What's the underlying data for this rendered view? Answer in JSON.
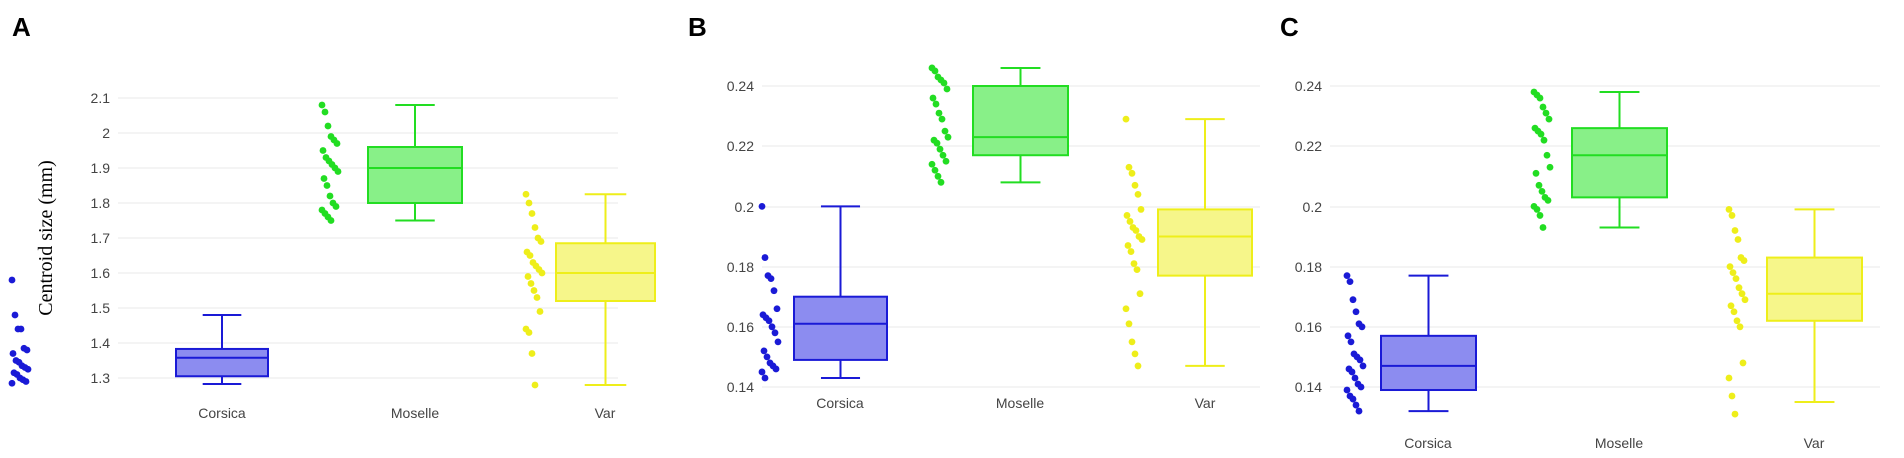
{
  "chart_data": [
    {
      "type": "box",
      "panel_label": "A",
      "ylabel": "Centroid size (mm)",
      "categories": [
        "Corsica",
        "Moselle",
        "Var"
      ],
      "yticks": [
        "1.3",
        "1.4",
        "1.5",
        "1.6",
        "1.7",
        "1.8",
        "1.9",
        "2",
        "2.1"
      ],
      "ylim": [
        1.27,
        2.12
      ],
      "grid": true,
      "boxes": [
        {
          "name": "Corsica",
          "color": "#1a1ad6",
          "fill": "#8c8cf0",
          "min": 1.283,
          "q1": 1.305,
          "median": 1.358,
          "q3": 1.383,
          "max": 1.48,
          "points": [
            1.58,
            1.48,
            1.44,
            1.44,
            1.385,
            1.38,
            1.37,
            1.35,
            1.345,
            1.335,
            1.33,
            1.325,
            1.315,
            1.31,
            1.3,
            1.295,
            1.29,
            1.285
          ]
        },
        {
          "name": "Moselle",
          "color": "#22dd22",
          "fill": "#88f088",
          "min": 1.75,
          "q1": 1.8,
          "median": 1.9,
          "q3": 1.96,
          "max": 2.08,
          "points": [
            2.08,
            2.06,
            2.02,
            1.99,
            1.98,
            1.97,
            1.95,
            1.93,
            1.92,
            1.91,
            1.9,
            1.89,
            1.87,
            1.85,
            1.82,
            1.8,
            1.79,
            1.78,
            1.77,
            1.76,
            1.75
          ]
        },
        {
          "name": "Var",
          "color": "#eeee1a",
          "fill": "#f6f68a",
          "min": 1.28,
          "q1": 1.52,
          "median": 1.6,
          "q3": 1.685,
          "max": 1.825,
          "points": [
            1.825,
            1.8,
            1.77,
            1.73,
            1.7,
            1.69,
            1.66,
            1.65,
            1.63,
            1.62,
            1.61,
            1.6,
            1.59,
            1.57,
            1.55,
            1.53,
            1.49,
            1.44,
            1.43,
            1.37,
            1.28
          ]
        }
      ]
    },
    {
      "type": "box",
      "panel_label": "B",
      "ylabel": "",
      "categories": [
        "Corsica",
        "Moselle",
        "Var"
      ],
      "yticks": [
        "0.14",
        "0.16",
        "0.18",
        "0.2",
        "0.22",
        "0.24"
      ],
      "ylim": [
        0.139,
        0.248
      ],
      "grid": true,
      "boxes": [
        {
          "name": "Corsica",
          "color": "#1a1ad6",
          "fill": "#8c8cf0",
          "min": 0.143,
          "q1": 0.149,
          "median": 0.161,
          "q3": 0.17,
          "max": 0.2,
          "points": [
            0.2,
            0.183,
            0.177,
            0.176,
            0.172,
            0.166,
            0.164,
            0.163,
            0.162,
            0.16,
            0.158,
            0.155,
            0.152,
            0.15,
            0.148,
            0.147,
            0.146,
            0.145,
            0.143
          ]
        },
        {
          "name": "Moselle",
          "color": "#22dd22",
          "fill": "#88f088",
          "min": 0.208,
          "q1": 0.217,
          "median": 0.223,
          "q3": 0.24,
          "max": 0.246,
          "points": [
            0.246,
            0.245,
            0.243,
            0.242,
            0.241,
            0.239,
            0.236,
            0.234,
            0.231,
            0.229,
            0.225,
            0.223,
            0.222,
            0.221,
            0.219,
            0.217,
            0.215,
            0.214,
            0.212,
            0.21,
            0.208
          ]
        },
        {
          "name": "Var",
          "color": "#eeee1a",
          "fill": "#f6f68a",
          "min": 0.147,
          "q1": 0.177,
          "median": 0.19,
          "q3": 0.199,
          "max": 0.229,
          "points": [
            0.229,
            0.213,
            0.211,
            0.207,
            0.204,
            0.199,
            0.197,
            0.195,
            0.193,
            0.192,
            0.19,
            0.189,
            0.187,
            0.185,
            0.181,
            0.179,
            0.171,
            0.166,
            0.161,
            0.155,
            0.151,
            0.147
          ]
        }
      ]
    },
    {
      "type": "box",
      "panel_label": "C",
      "ylabel": "",
      "categories": [
        "Corsica",
        "Moselle",
        "Var"
      ],
      "yticks": [
        "0.14",
        "0.16",
        "0.18",
        "0.2",
        "0.22",
        "0.24"
      ],
      "ylim": [
        0.129,
        0.242
      ],
      "grid": true,
      "boxes": [
        {
          "name": "Corsica",
          "color": "#1a1ad6",
          "fill": "#8c8cf0",
          "min": 0.132,
          "q1": 0.139,
          "median": 0.147,
          "q3": 0.157,
          "max": 0.177,
          "points": [
            0.177,
            0.175,
            0.169,
            0.165,
            0.161,
            0.16,
            0.157,
            0.155,
            0.151,
            0.15,
            0.149,
            0.147,
            0.146,
            0.145,
            0.143,
            0.141,
            0.14,
            0.139,
            0.137,
            0.136,
            0.134,
            0.132
          ]
        },
        {
          "name": "Moselle",
          "color": "#22dd22",
          "fill": "#88f088",
          "min": 0.193,
          "q1": 0.203,
          "median": 0.217,
          "q3": 0.226,
          "max": 0.238,
          "points": [
            0.238,
            0.237,
            0.236,
            0.233,
            0.231,
            0.229,
            0.226,
            0.225,
            0.224,
            0.222,
            0.217,
            0.213,
            0.211,
            0.207,
            0.205,
            0.203,
            0.202,
            0.2,
            0.199,
            0.197,
            0.193
          ]
        },
        {
          "name": "Var",
          "color": "#eeee1a",
          "fill": "#f6f68a",
          "min": 0.135,
          "q1": 0.162,
          "median": 0.171,
          "q3": 0.183,
          "max": 0.199,
          "points": [
            0.199,
            0.197,
            0.192,
            0.189,
            0.183,
            0.182,
            0.18,
            0.178,
            0.176,
            0.173,
            0.171,
            0.169,
            0.167,
            0.165,
            0.162,
            0.16,
            0.148,
            0.143,
            0.137,
            0.131
          ]
        }
      ]
    }
  ]
}
